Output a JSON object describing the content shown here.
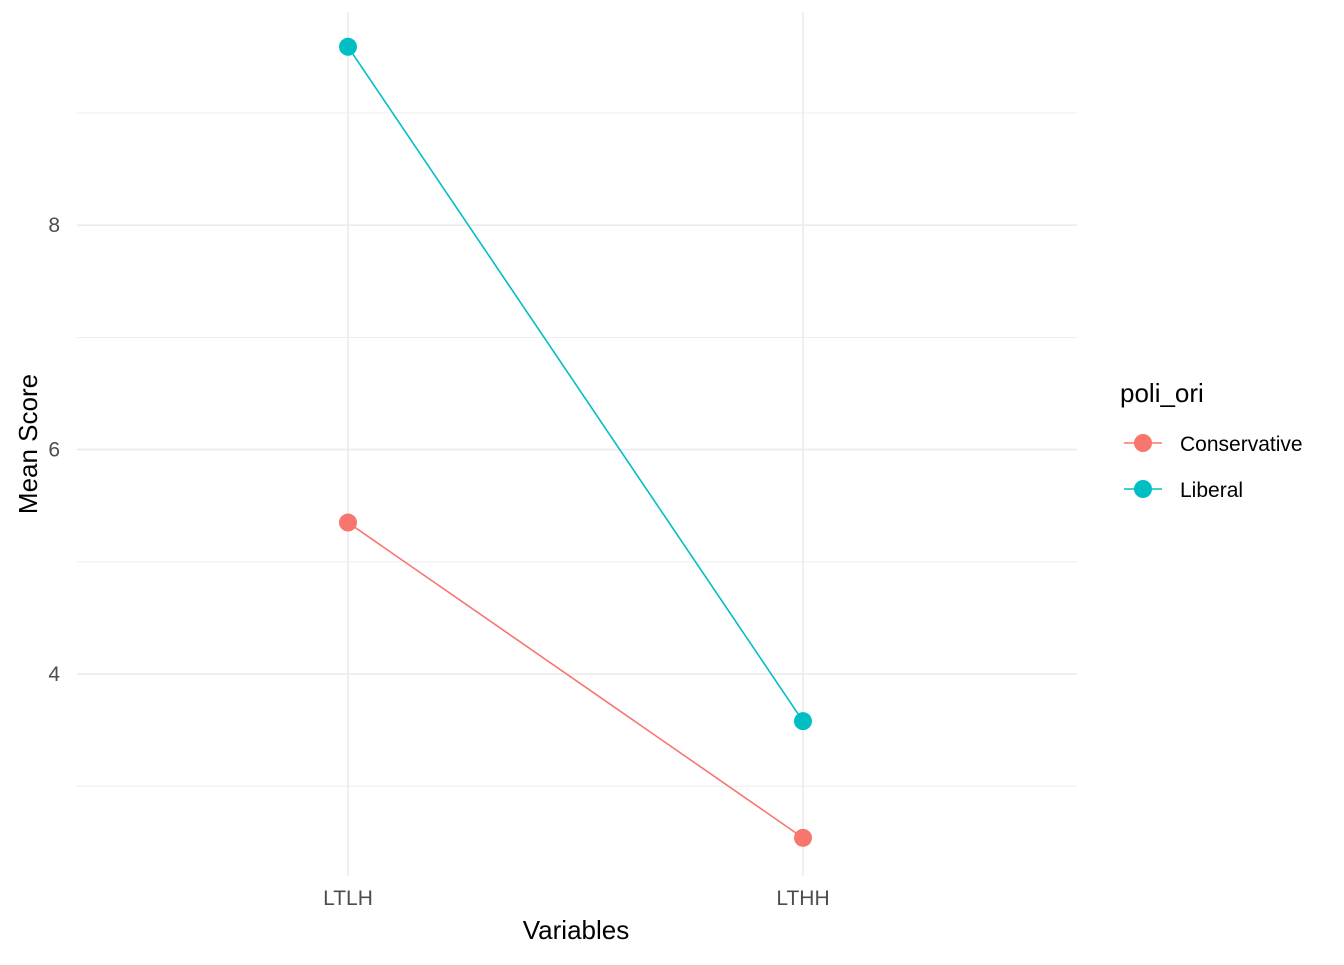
{
  "chart_data": {
    "type": "line",
    "title": "",
    "xlabel": "Variables",
    "ylabel": "Mean Score",
    "categories": [
      "LTLH",
      "LTHH"
    ],
    "ylim": [
      2.2,
      9.9
    ],
    "yticks": [
      4,
      6,
      8
    ],
    "grid": true,
    "legend": {
      "title": "poli_ori",
      "position": "right"
    },
    "series": [
      {
        "name": "Conservative",
        "color": "#F8766D",
        "values": [
          5.35,
          2.54
        ]
      },
      {
        "name": "Liberal",
        "color": "#00BFC4",
        "values": [
          9.59,
          3.58
        ]
      }
    ]
  }
}
